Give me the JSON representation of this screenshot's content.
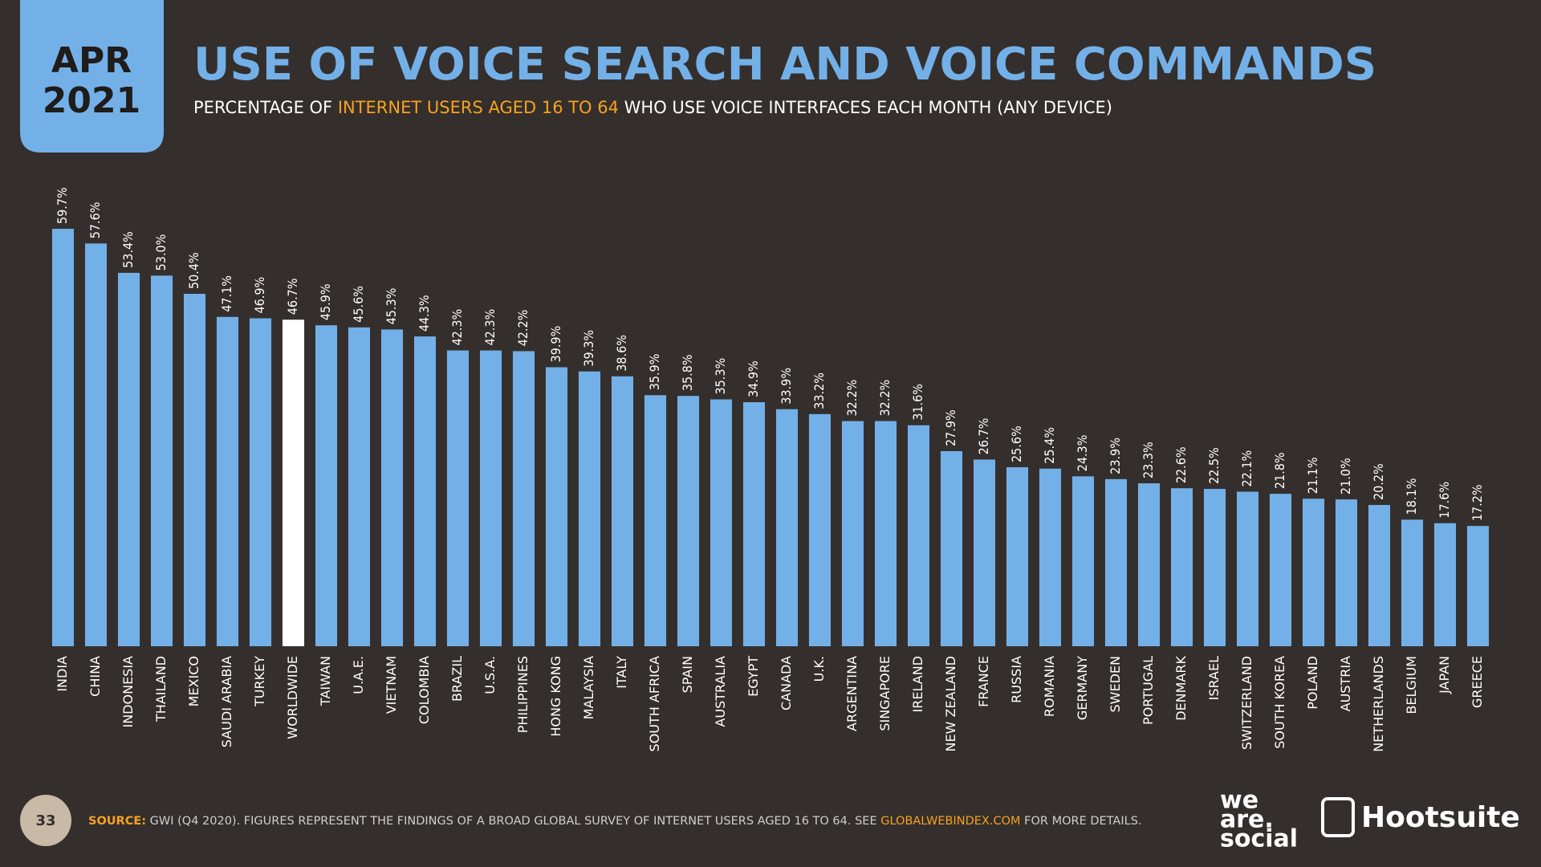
{
  "header": {
    "month": "APR",
    "year": "2021"
  },
  "chart_data": {
    "type": "bar",
    "title": "USE OF VOICE SEARCH AND VOICE COMMANDS",
    "subtitle": {
      "before": "PERCENTAGE OF ",
      "highlight": "INTERNET USERS AGED 16 TO 64",
      "after": " WHO USE VOICE INTERFACES EACH MONTH (ANY DEVICE)"
    },
    "categories": [
      "INDIA",
      "CHINA",
      "INDONESIA",
      "THAILAND",
      "MEXICO",
      "SAUDI ARABIA",
      "TURKEY",
      "WORLDWIDE",
      "TAIWAN",
      "U.A.E.",
      "VIETNAM",
      "COLOMBIA",
      "BRAZIL",
      "U.S.A.",
      "PHILIPPINES",
      "HONG KONG",
      "MALAYSIA",
      "ITALY",
      "SOUTH AFRICA",
      "SPAIN",
      "AUSTRALIA",
      "EGYPT",
      "CANADA",
      "U.K.",
      "ARGENTINA",
      "SINGAPORE",
      "IRELAND",
      "NEW ZEALAND",
      "FRANCE",
      "RUSSIA",
      "ROMANIA",
      "GERMANY",
      "SWEDEN",
      "PORTUGAL",
      "DENMARK",
      "ISRAEL",
      "SWITZERLAND",
      "SOUTH KOREA",
      "POLAND",
      "AUSTRIA",
      "NETHERLANDS",
      "BELGIUM",
      "JAPAN",
      "GREECE"
    ],
    "values": [
      59.7,
      57.6,
      53.4,
      53.0,
      50.4,
      47.1,
      46.9,
      46.7,
      45.9,
      45.6,
      45.3,
      44.3,
      42.3,
      42.3,
      42.2,
      39.9,
      39.3,
      38.6,
      35.9,
      35.8,
      35.3,
      34.9,
      33.9,
      33.2,
      32.2,
      32.2,
      31.6,
      27.9,
      26.7,
      25.6,
      25.4,
      24.3,
      23.9,
      23.3,
      22.6,
      22.5,
      22.1,
      21.8,
      21.1,
      21.0,
      20.2,
      18.1,
      17.6,
      17.2
    ],
    "value_labels": [
      "59.7%",
      "57.6%",
      "53.4%",
      "53.0%",
      "50.4%",
      "47.1%",
      "46.9%",
      "46.7%",
      "45.9%",
      "45.6%",
      "45.3%",
      "44.3%",
      "42.3%",
      "42.3%",
      "42.2%",
      "39.9%",
      "39.3%",
      "38.6%",
      "35.9%",
      "35.8%",
      "35.3%",
      "34.9%",
      "33.9%",
      "33.2%",
      "32.2%",
      "32.2%",
      "31.6%",
      "27.9%",
      "26.7%",
      "25.6%",
      "25.4%",
      "24.3%",
      "23.9%",
      "23.3%",
      "22.6%",
      "22.5%",
      "22.1%",
      "21.8%",
      "21.1%",
      "21.0%",
      "20.2%",
      "18.1%",
      "17.6%",
      "17.2%"
    ],
    "colors": [
      "#74b0e8",
      "#74b0e8",
      "#74b0e8",
      "#74b0e8",
      "#74b0e8",
      "#74b0e8",
      "#74b0e8",
      "#ffffff",
      "#74b0e8",
      "#74b0e8",
      "#74b0e8",
      "#74b0e8",
      "#74b0e8",
      "#74b0e8",
      "#74b0e8",
      "#74b0e8",
      "#74b0e8",
      "#74b0e8",
      "#74b0e8",
      "#74b0e8",
      "#74b0e8",
      "#74b0e8",
      "#74b0e8",
      "#74b0e8",
      "#74b0e8",
      "#74b0e8",
      "#74b0e8",
      "#74b0e8",
      "#74b0e8",
      "#74b0e8",
      "#74b0e8",
      "#74b0e8",
      "#74b0e8",
      "#74b0e8",
      "#74b0e8",
      "#74b0e8",
      "#74b0e8",
      "#74b0e8",
      "#74b0e8",
      "#74b0e8",
      "#74b0e8",
      "#74b0e8",
      "#74b0e8",
      "#74b0e8"
    ],
    "grid": false
  },
  "footer": {
    "page": "33",
    "source_label": "SOURCE:",
    "source_text": " GWI (Q4 2020). FIGURES REPRESENT THE FINDINGS OF A BROAD GLOBAL SURVEY OF INTERNET USERS AGED 16 TO 64. SEE ",
    "source_link": "GLOBALWEBINDEX.COM",
    "source_end": " FOR MORE DETAILS.",
    "logo1": [
      "we",
      "are.",
      "social"
    ],
    "logo2": "Hootsuite"
  }
}
